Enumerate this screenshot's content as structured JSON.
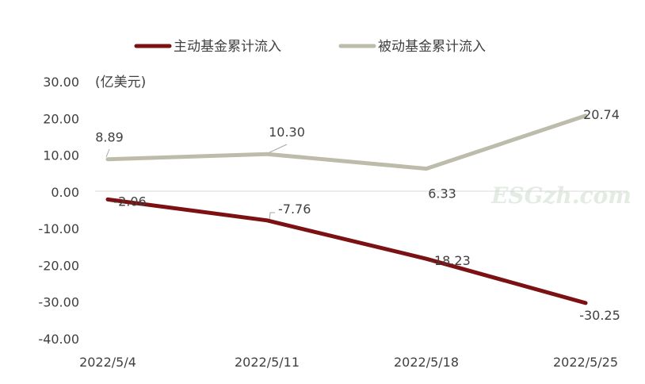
{
  "chart_data": {
    "type": "line",
    "categories": [
      "2022/5/4",
      "2022/5/11",
      "2022/5/18",
      "2022/5/25"
    ],
    "series": [
      {
        "name": "主动基金累计流入",
        "values": [
          -2.06,
          -7.76,
          -18.23,
          -30.25
        ],
        "color": "#7b1113",
        "labels": [
          "-2.06",
          "-7.76",
          "-18.23",
          "-30.25"
        ]
      },
      {
        "name": "被动基金累计流入",
        "values": [
          8.89,
          10.3,
          6.33,
          20.74
        ],
        "color": "#bdbcab",
        "labels": [
          "8.89",
          "10.30",
          "6.33",
          "20.74"
        ]
      }
    ],
    "ylim": [
      -40,
      30
    ],
    "yticks": [
      30,
      20,
      10,
      0,
      -10,
      -20,
      -30,
      -40
    ],
    "ytick_labels": [
      "30.00",
      "20.00",
      "10.00",
      "0.00",
      "-10.00",
      "-20.00",
      "-30.00",
      "-40.00"
    ],
    "unit_label": "(亿美元)",
    "legend": "top-center",
    "grid": false
  },
  "watermark": "ESGzh.com"
}
